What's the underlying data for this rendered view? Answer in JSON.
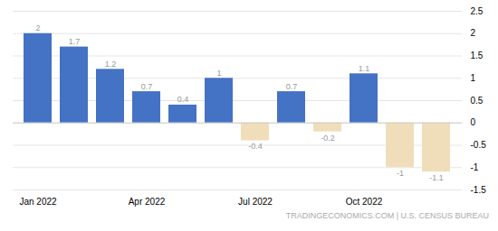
{
  "chart_data": {
    "type": "bar",
    "categories": [
      "Jan 2022",
      null,
      null,
      "Apr 2022",
      null,
      null,
      "Jul 2022",
      null,
      null,
      "Oct 2022",
      null,
      null
    ],
    "values": [
      2.0,
      1.7,
      1.2,
      0.7,
      0.4,
      1.0,
      -0.4,
      0.7,
      -0.2,
      1.1,
      -1.0,
      -1.1
    ],
    "colors": [
      "#4472c4",
      "#4472c4",
      "#4472c4",
      "#4472c4",
      "#4472c4",
      "#4472c4",
      "#f0deba",
      "#4472c4",
      "#f0deba",
      "#4472c4",
      "#f0deba",
      "#f0deba"
    ],
    "ylim": [
      -1.5,
      2.5
    ],
    "yticks": [
      -1.5,
      -1.0,
      -0.5,
      0.0,
      0.5,
      1.0,
      1.5,
      2.0,
      2.5
    ],
    "grid": true,
    "data_labels": true,
    "annotations": [
      "TRADINGECONOMICS.COM | U.S. CENSUS BUREAU"
    ]
  }
}
